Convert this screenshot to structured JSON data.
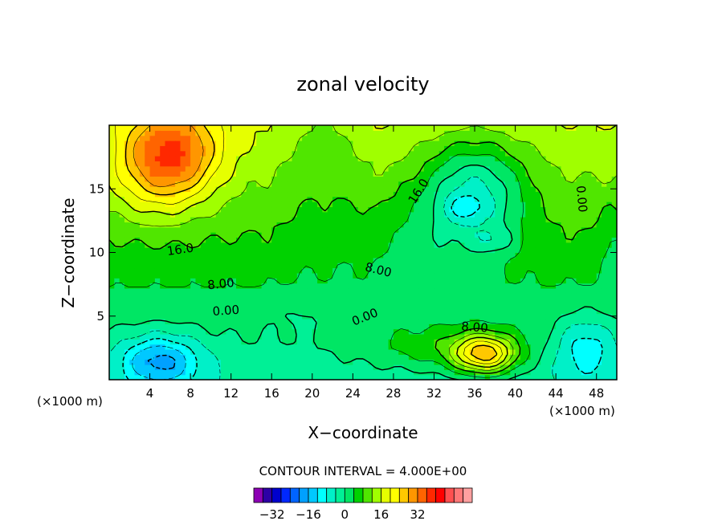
{
  "chart_data": {
    "type": "heatmap",
    "subtype": "filled-contour",
    "title": "zonal velocity",
    "xlabel": "X−coordinate",
    "ylabel": "Z−coordinate",
    "x_unit_left": "(×1000 m)",
    "x_unit_right": "(×1000 m)",
    "xlim": [
      0,
      50
    ],
    "ylim": [
      0,
      20
    ],
    "x_ticks": [
      4,
      8,
      12,
      16,
      20,
      24,
      28,
      32,
      36,
      40,
      44,
      48
    ],
    "y_ticks": [
      5,
      10,
      15
    ],
    "contour_interval_text": "CONTOUR INTERVAL = 4.000E+00",
    "contour_interval": 4,
    "contour_labels": [
      {
        "text": "16.0",
        "x": 7,
        "z": 10.2,
        "angle": -8
      },
      {
        "text": "8.00",
        "x": 11,
        "z": 7.5,
        "angle": -6
      },
      {
        "text": "0.00",
        "x": 11.5,
        "z": 5.4,
        "angle": -4
      },
      {
        "text": "16.0",
        "x": 30.5,
        "z": 14.8,
        "angle": -58
      },
      {
        "text": "8.00",
        "x": 26.5,
        "z": 8.6,
        "angle": 14
      },
      {
        "text": "0.00",
        "x": 25.2,
        "z": 4.9,
        "angle": -22
      },
      {
        "text": "8.00",
        "x": 36,
        "z": 4.1,
        "angle": 4
      },
      {
        "text": "0.00",
        "x": 46.5,
        "z": 14.2,
        "angle": 85
      }
    ],
    "colorbar": {
      "colors": [
        "#8c00b4",
        "#2d00a5",
        "#0000cd",
        "#0028ff",
        "#0064ff",
        "#00a0ff",
        "#00c8ff",
        "#00ffff",
        "#00f0c8",
        "#00f096",
        "#00e664",
        "#00d200",
        "#50e600",
        "#a0ff00",
        "#e6ff00",
        "#ffff00",
        "#ffc800",
        "#ff9600",
        "#ff6400",
        "#ff2800",
        "#ff0000",
        "#ff5050",
        "#ff7878",
        "#ffa0a0"
      ],
      "labels": [
        "−32",
        "−16",
        "0",
        "16",
        "32"
      ],
      "label_values": [
        -32,
        -16,
        0,
        16,
        32
      ],
      "levels": [
        -40,
        -36,
        -32,
        -28,
        -24,
        -20,
        -16,
        -12,
        -8,
        -4,
        0,
        4,
        8,
        12,
        16,
        20,
        24,
        28,
        32,
        36,
        40,
        44,
        48,
        52
      ]
    }
  }
}
